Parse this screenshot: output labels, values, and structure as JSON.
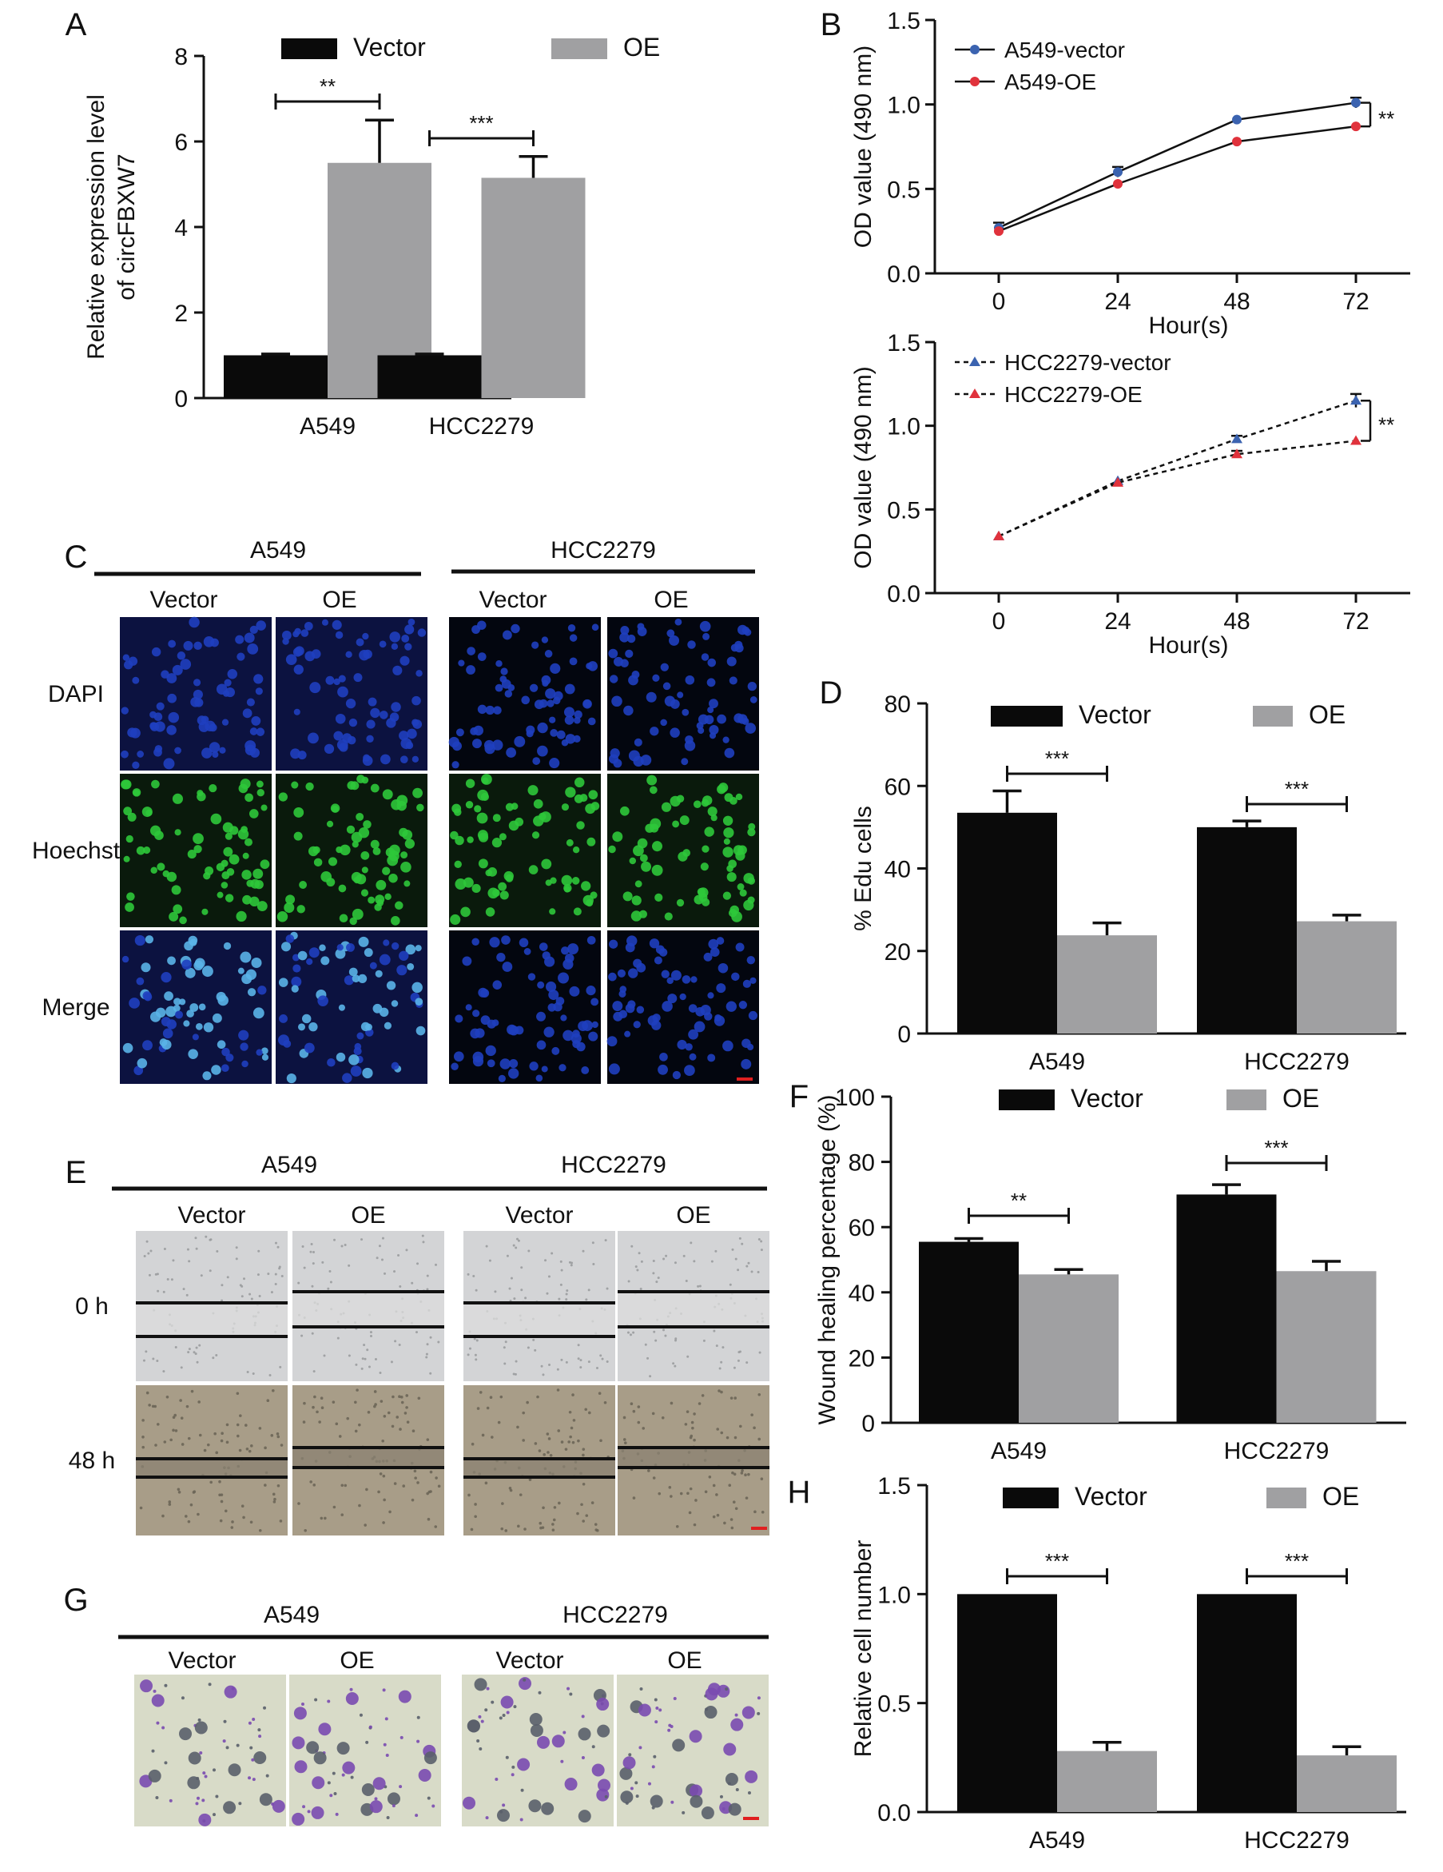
{
  "panel_letters": {
    "A": "A",
    "B": "B",
    "C": "C",
    "D": "D",
    "E": "E",
    "F": "F",
    "G": "G",
    "H": "H"
  },
  "colors": {
    "vector": "#0a0a0a",
    "oe": "#a0a0a2",
    "line_vector": "#3b63b0",
    "line_oe": "#e0323c",
    "dapi": "#1f3fbf",
    "hoechst": "#2ec83a",
    "merge": "#5ab4e8",
    "scratch_bg": "#cfd0d2",
    "scratch_48h": "#a79a83",
    "crystal_violet": "#7a4ab0",
    "scale_bar": "#e02020"
  },
  "microscopy_C": {
    "groups": [
      "A549",
      "HCC2279"
    ],
    "conditions": [
      "Vector",
      "OE",
      "Vector",
      "OE"
    ],
    "rows": [
      "DAPI",
      "Hoechst",
      "Merge"
    ]
  },
  "microscopy_E": {
    "groups": [
      "A549",
      "HCC2279"
    ],
    "conditions": [
      "Vector",
      "OE",
      "Vector",
      "OE"
    ],
    "rows": [
      "0 h",
      "48 h"
    ]
  },
  "microscopy_G": {
    "groups": [
      "A549",
      "HCC2279"
    ],
    "conditions": [
      "Vector",
      "OE",
      "Vector",
      "OE"
    ]
  },
  "chart_data": [
    {
      "panel": "A",
      "type": "bar",
      "categories": [
        "A549",
        "HCC2279"
      ],
      "series": [
        {
          "name": "Vector",
          "values": [
            1.0,
            1.0
          ],
          "errors": [
            0.03,
            0.03
          ]
        },
        {
          "name": "OE",
          "values": [
            5.5,
            5.15
          ],
          "errors": [
            1.0,
            0.5
          ]
        }
      ],
      "ylabel_lines": [
        "Relative expression level",
        "of circFBXW7"
      ],
      "ylim": [
        0,
        8
      ],
      "yticks": [
        0,
        2,
        4,
        6,
        8
      ],
      "significance": [
        "**",
        "***"
      ],
      "legend": "top"
    },
    {
      "panel": "B-top",
      "type": "line",
      "x": [
        0,
        24,
        48,
        72
      ],
      "series": [
        {
          "name": "A549-vector",
          "values": [
            0.27,
            0.6,
            0.91,
            1.01
          ],
          "errors": [
            0.03,
            0.03,
            0.01,
            0.03
          ]
        },
        {
          "name": "A549-OE",
          "values": [
            0.25,
            0.53,
            0.78,
            0.87
          ],
          "errors": [
            0.01,
            0.01,
            0.01,
            0.01
          ]
        }
      ],
      "xlabel": "Hour(s)",
      "ylabel": "OD value (490 nm)",
      "ylim": [
        0,
        1.5
      ],
      "yticks": [
        "0.0",
        "0.5",
        "1.0",
        "1.5"
      ],
      "significance": "**",
      "legend": "top-left"
    },
    {
      "panel": "B-bottom",
      "type": "line",
      "x": [
        0,
        24,
        48,
        72
      ],
      "series": [
        {
          "name": "HCC2279-vector",
          "values": [
            0.34,
            0.67,
            0.92,
            1.15
          ],
          "errors": [
            0.01,
            0.01,
            0.02,
            0.04
          ]
        },
        {
          "name": "HCC2279-OE",
          "values": [
            0.34,
            0.66,
            0.83,
            0.91
          ],
          "errors": [
            0.01,
            0.01,
            0.02,
            0.01
          ]
        }
      ],
      "xlabel": "Hour(s)",
      "ylabel": "OD value (490 nm)",
      "ylim": [
        0,
        1.5
      ],
      "yticks": [
        "0.0",
        "0.5",
        "1.0",
        "1.5"
      ],
      "significance": "**",
      "legend": "top-left"
    },
    {
      "panel": "D",
      "type": "bar",
      "categories": [
        "A549",
        "HCC2279"
      ],
      "series": [
        {
          "name": "Vector",
          "values": [
            53.5,
            50.0
          ],
          "errors": [
            5.3,
            1.5
          ]
        },
        {
          "name": "OE",
          "values": [
            23.8,
            27.2
          ],
          "errors": [
            3.0,
            1.5
          ]
        }
      ],
      "ylabel": "% Edu cells",
      "ylim": [
        0,
        80
      ],
      "yticks": [
        0,
        20,
        40,
        60,
        80
      ],
      "significance": [
        "***",
        "***"
      ],
      "legend": "top"
    },
    {
      "panel": "F",
      "type": "bar",
      "categories": [
        "A549",
        "HCC2279"
      ],
      "series": [
        {
          "name": "Vector",
          "values": [
            55.5,
            70.0
          ],
          "errors": [
            1.0,
            3.0
          ]
        },
        {
          "name": "OE",
          "values": [
            45.5,
            46.5
          ],
          "errors": [
            1.5,
            3.0
          ]
        }
      ],
      "ylabel": "Wound healing percentage (%)",
      "ylim": [
        0,
        100
      ],
      "yticks": [
        0,
        20,
        40,
        60,
        80,
        100
      ],
      "significance": [
        "**",
        "***"
      ],
      "legend": "top"
    },
    {
      "panel": "H",
      "type": "bar",
      "categories": [
        "A549",
        "HCC2279"
      ],
      "series": [
        {
          "name": "Vector",
          "values": [
            1.0,
            1.0
          ],
          "errors": [
            0,
            0
          ]
        },
        {
          "name": "OE",
          "values": [
            0.28,
            0.26
          ],
          "errors": [
            0.04,
            0.04
          ]
        }
      ],
      "ylabel": "Relative cell number",
      "ylim": [
        0,
        1.5
      ],
      "yticks": [
        "0.0",
        "0.5",
        "1.0",
        "1.5"
      ],
      "significance": [
        "***",
        "***"
      ],
      "legend": "top"
    }
  ]
}
